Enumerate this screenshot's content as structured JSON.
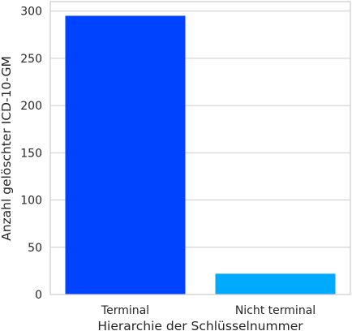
{
  "chart_data": {
    "type": "bar",
    "title": "",
    "xlabel": "Hierarchie der Schlüsselnummer",
    "ylabel": "Anzahl gelöschter ICD-10-GM",
    "categories": [
      "Terminal",
      "Nicht terminal"
    ],
    "values": [
      295,
      22
    ],
    "colors": [
      "#0043ff",
      "#00aaff"
    ],
    "ylim": [
      0,
      310
    ],
    "yticks": [
      0,
      50,
      100,
      150,
      200,
      250,
      300
    ],
    "grid": "horizontal",
    "legend": "none"
  }
}
